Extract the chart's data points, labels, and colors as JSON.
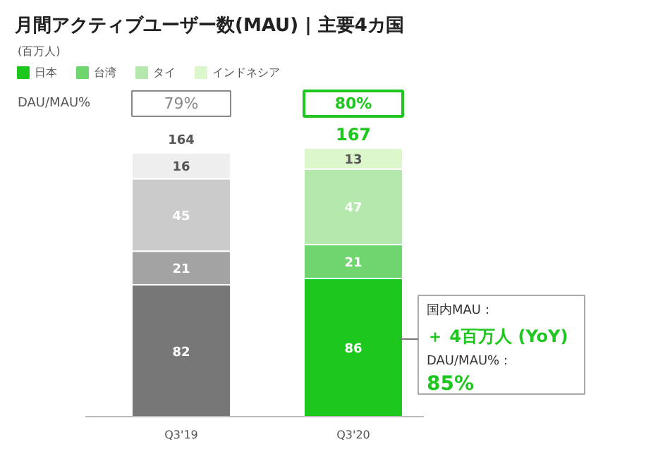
{
  "chart_data": {
    "type": "bar",
    "stacked": true,
    "title": "月間アクティブユーザー数(MAU) | 主要4カ国",
    "subtitle": "(百万人)",
    "categories": [
      "Q3'19",
      "Q3'20"
    ],
    "series": [
      {
        "name": "日本",
        "color": "#1ec71e",
        "colors": [
          "#777777",
          "#1ec71e"
        ],
        "values": [
          82,
          86
        ]
      },
      {
        "name": "台湾",
        "color": "#6fd66f",
        "colors": [
          "#a3a3a3",
          "#6fd66f"
        ],
        "values": [
          21,
          21
        ]
      },
      {
        "name": "タイ",
        "color": "#b5e8ac",
        "colors": [
          "#cbcbcb",
          "#b5e8ac"
        ],
        "values": [
          45,
          47
        ]
      },
      {
        "name": "インドネシア",
        "color": "#dcf7cc",
        "colors": [
          "#eeeeee",
          "#dcf7cc"
        ],
        "values": [
          16,
          13
        ]
      }
    ],
    "data_labels": true,
    "totals": [
      "164",
      "167"
    ],
    "legend": "top left",
    "annotations": [
      "DAU/MAU%",
      "79%",
      "80%",
      "国内MAU：",
      "＋ 4百万人 (YoY)",
      "DAU/MAU%：",
      "85%"
    ]
  }
}
